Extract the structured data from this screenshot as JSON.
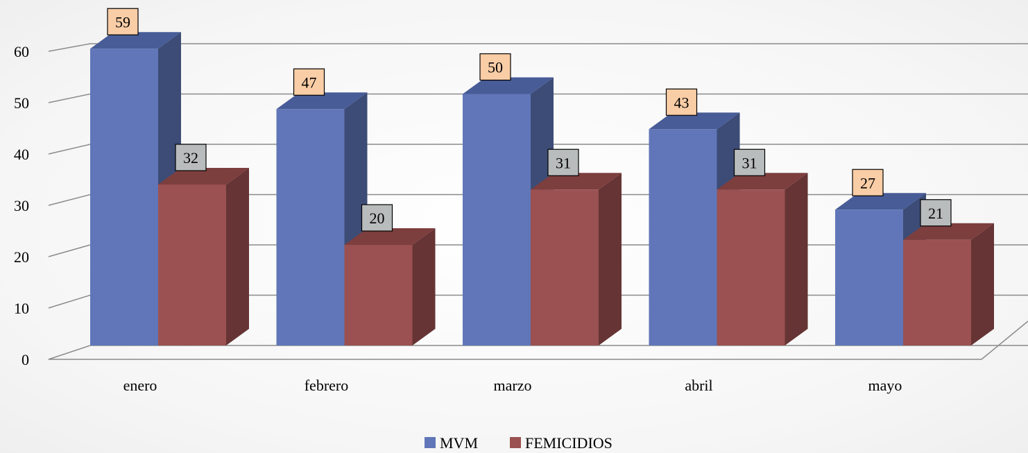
{
  "chart_data": {
    "type": "bar",
    "categories": [
      "enero",
      "febrero",
      "marzo",
      "abril",
      "mayo"
    ],
    "series": [
      {
        "name": "MVM",
        "values": [
          59,
          47,
          50,
          43,
          27
        ]
      },
      {
        "name": "FEMICIDIOS",
        "values": [
          32,
          20,
          31,
          31,
          21
        ]
      }
    ],
    "ylim": [
      0,
      60
    ],
    "y_ticks": [
      0,
      10,
      20,
      30,
      40,
      50,
      60
    ],
    "grid": true,
    "legend_position": "bottom",
    "three_d": true,
    "colors": {
      "MVM": "#6076b8",
      "MVM_side": "#3c4c76",
      "MVM_top": "#485c97",
      "FEMICIDIOS": "#9b5151",
      "FEMICIDIOS_side": "#663434",
      "FEMICIDIOS_top": "#7d3e3e",
      "label_MVM_bg": "#f9cda6",
      "label_FEMICIDIOS_bg": "#b9bcbc"
    }
  }
}
